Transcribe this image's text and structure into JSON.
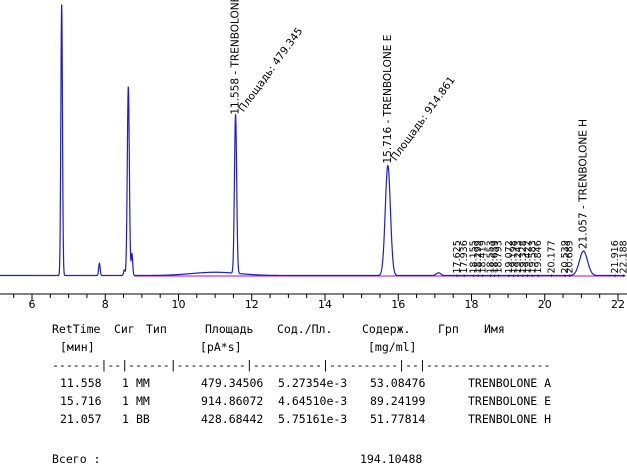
{
  "chart_data": {
    "type": "line",
    "x_ticks": [
      6,
      8,
      10,
      12,
      14,
      16,
      18,
      20,
      22
    ],
    "xlim": [
      4.3,
      22.2
    ],
    "peaks": [
      {
        "rt": 6.81,
        "h": 1.0,
        "w": 0.022
      },
      {
        "rt": 7.84,
        "h": 0.045,
        "w": 0.02
      },
      {
        "rt": 8.52,
        "h": 0.02,
        "w": 0.02
      },
      {
        "rt": 8.63,
        "h": 0.695,
        "w": 0.028
      },
      {
        "rt": 8.73,
        "h": 0.08,
        "w": 0.02
      },
      {
        "rt": 11.558,
        "h": 0.585,
        "w": 0.03
      },
      {
        "rt": 15.716,
        "h": 0.405,
        "w": 0.07
      },
      {
        "rt": 17.1,
        "h": 0.01,
        "w": 0.06
      },
      {
        "rt": 21.057,
        "h": 0.09,
        "w": 0.11
      }
    ],
    "labeled_peaks": [
      {
        "rt": "11.558",
        "name": "TRENBOLONE A",
        "area": "Площадь: 479.345"
      },
      {
        "rt": "15.716",
        "name": "TRENBOLONE E",
        "area": "Площадь: 914.861"
      },
      {
        "rt": "21.057",
        "name": "TRENBOLONE H",
        "area": ""
      }
    ],
    "minor_peak_labels": [
      {
        "x": 17.6,
        "text": "17.625"
      },
      {
        "x": 17.8,
        "text": "17.936"
      },
      {
        "x": 18.06,
        "text": "18.155"
      },
      {
        "x": 18.18,
        "text": "18.299"
      },
      {
        "x": 18.3,
        "text": "18.419"
      },
      {
        "x": 18.52,
        "text": "18.553"
      },
      {
        "x": 18.63,
        "text": "18.659"
      },
      {
        "x": 18.74,
        "text": "18.793"
      },
      {
        "x": 19.02,
        "text": "19.072"
      },
      {
        "x": 19.15,
        "text": "19.198"
      },
      {
        "x": 19.27,
        "text": "19.243"
      },
      {
        "x": 19.4,
        "text": "19.328"
      },
      {
        "x": 19.53,
        "text": "19.422"
      },
      {
        "x": 19.66,
        "text": "19.583"
      },
      {
        "x": 19.82,
        "text": "19.846"
      },
      {
        "x": 20.18,
        "text": "20.177"
      },
      {
        "x": 20.55,
        "text": "20.539"
      },
      {
        "x": 20.68,
        "text": "20.689"
      },
      {
        "x": 21.92,
        "text": "21.916"
      },
      {
        "x": 22.15,
        "text": "22.188"
      }
    ]
  },
  "table": {
    "headers": [
      "RetTime",
      "Сиг",
      "Тип",
      "Площадь",
      "Сод./Пл.",
      "Содерж.",
      "Грп",
      "Имя"
    ],
    "units": [
      "[мин]",
      "[pA*s]",
      "[mg/ml]"
    ],
    "separator": "-------|--|------|----------|----------|----------|--|------------------",
    "rows": [
      [
        "11.558",
        "1",
        "MM",
        "479.34506",
        "5.27354e-3",
        "53.08476",
        "TRENBOLONE A"
      ],
      [
        "15.716",
        "1",
        "MM",
        "914.86072",
        "4.64510e-3",
        "89.24199",
        "TRENBOLONE E"
      ],
      [
        "21.057",
        "1",
        "BB",
        "428.68442",
        "5.75161e-3",
        "51.77814",
        "TRENBOLONE H"
      ]
    ],
    "total_label": "Всего :",
    "total_value": "194.10488"
  },
  "colors": {
    "signal": "#1c1cd0",
    "baseline": "#c000c0",
    "axis": "#000000"
  }
}
